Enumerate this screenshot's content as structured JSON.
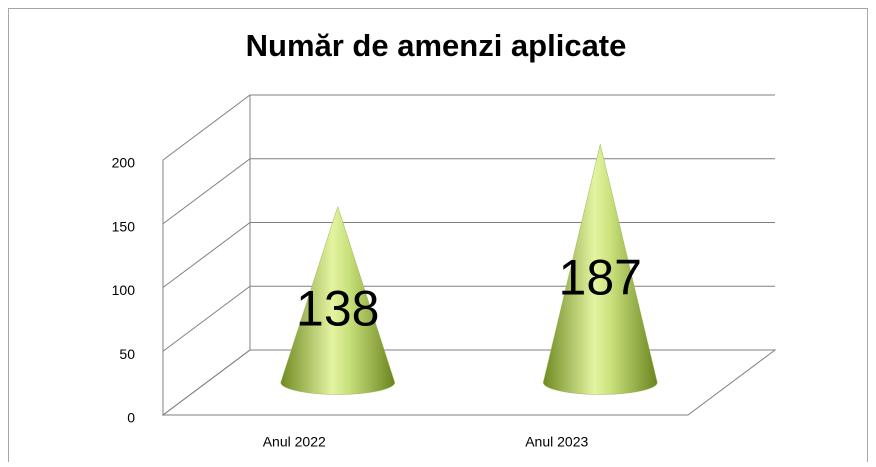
{
  "chart_data": {
    "type": "cone",
    "title": "Număr de amenzi aplicate",
    "categories": [
      "Anul 2022",
      "Anul 2023"
    ],
    "values": [
      138,
      187
    ],
    "color": "#9bbb59",
    "ylim": [
      0,
      200
    ],
    "yticks": [
      0,
      50,
      100,
      150,
      200
    ],
    "grid": true
  }
}
